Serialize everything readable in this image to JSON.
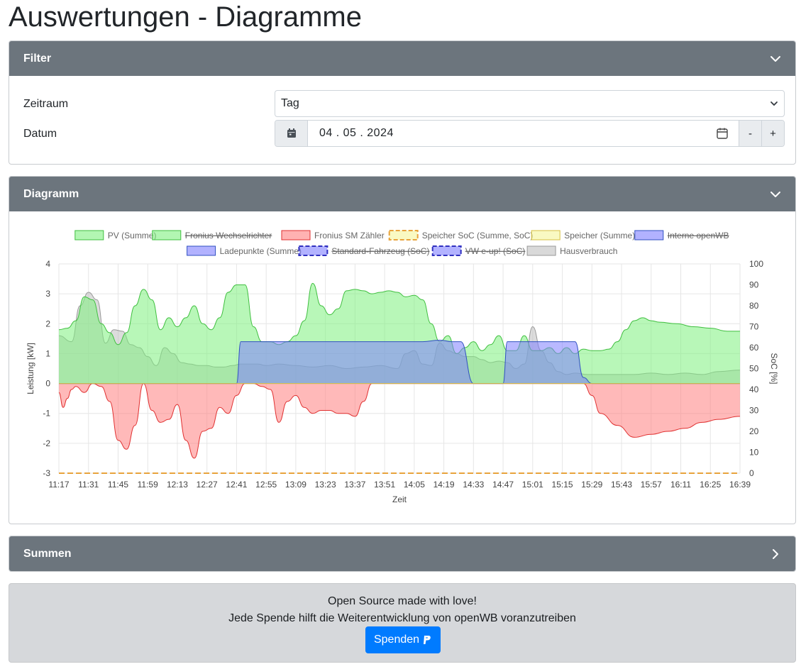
{
  "page_title": "Auswertungen - Diagramme",
  "filter": {
    "header": "Filter",
    "zeitraum_label": "Zeitraum",
    "zeitraum_value": "Tag",
    "datum_label": "Datum",
    "datum_value": "04 . 05 . 2024",
    "minus_label": "-",
    "plus_label": "+"
  },
  "diagram": {
    "header": "Diagramm"
  },
  "summen": {
    "header": "Summen"
  },
  "footer": {
    "line1": "Open Source made with love!",
    "line2": "Jede Spende hilft die Weiterentwicklung von openWB voranzutreiben",
    "donate_label": "Spenden"
  },
  "colors": {
    "header_bg": "#6c757d",
    "pv": "#7ef07e",
    "fronius_zaehler": "#ff7f7f",
    "speicher": "#f5f59a",
    "ladepunkte": "#7f7fff",
    "hausverbrauch": "#bfbfbf",
    "donate": "#007bff"
  },
  "chart_data": {
    "type": "area",
    "xlabel": "Zeit",
    "ylabel": "Leistung [kW]",
    "y2label": "SoC [%]",
    "ylim": [
      -3,
      4
    ],
    "y2lim": [
      0,
      100
    ],
    "yticks": [
      "4",
      "3",
      "2",
      "1",
      "0",
      "-1",
      "-2",
      "-3"
    ],
    "y2ticks": [
      "100",
      "90",
      "80",
      "70",
      "60",
      "50",
      "40",
      "30",
      "20",
      "10",
      "0"
    ],
    "x_labels": [
      "11:17",
      "11:31",
      "11:45",
      "11:59",
      "12:13",
      "12:27",
      "12:41",
      "12:55",
      "13:09",
      "13:23",
      "13:37",
      "13:51",
      "14:05",
      "14:19",
      "14:33",
      "14:47",
      "15:01",
      "15:15",
      "15:29",
      "15:43",
      "15:57",
      "16:11",
      "16:25",
      "16:39"
    ],
    "grid": true,
    "legend": [
      {
        "label": "PV (Summe)",
        "color": "pv",
        "hidden": false,
        "dashed": false
      },
      {
        "label": "Fronius Wechselrichter",
        "color": "pv",
        "hidden": true,
        "dashed": false
      },
      {
        "label": "Fronius SM Zähler",
        "color": "fronius_zaehler",
        "hidden": false,
        "dashed": false
      },
      {
        "label": "Speicher SoC (Summe, SoC)",
        "color": "speicher",
        "hidden": false,
        "dashed": true,
        "stroke": "#e8a33c"
      },
      {
        "label": "Speicher (Summe)",
        "color": "speicher",
        "hidden": false,
        "dashed": false
      },
      {
        "label": "Interne openWB",
        "color": "ladepunkte",
        "hidden": true,
        "dashed": false
      },
      {
        "label": "Ladepunkte (Summe)",
        "color": "ladepunkte",
        "hidden": false,
        "dashed": false
      },
      {
        "label": "Standard-Fahrzeug (SoC)",
        "color": "ladepunkte",
        "hidden": true,
        "dashed": true,
        "stroke": "#3030c0"
      },
      {
        "label": "VW e-up! (SoC)",
        "color": "ladepunkte",
        "hidden": true,
        "dashed": true,
        "stroke": "#3030c0"
      },
      {
        "label": "Hausverbrauch",
        "color": "hausverbrauch",
        "hidden": false,
        "dashed": false
      }
    ],
    "series": [
      {
        "name": "PV (Summe)",
        "x_minutes": [
          0,
          4,
          8,
          12,
          16,
          20,
          24,
          28,
          32,
          36,
          40,
          44,
          48,
          52,
          56,
          60,
          64,
          68,
          72,
          76,
          80,
          84,
          88,
          92,
          96,
          100,
          104,
          108,
          112,
          116,
          120,
          124,
          128,
          132,
          136,
          140,
          144,
          148,
          152,
          156,
          160,
          164,
          168,
          172,
          176,
          180,
          184,
          188,
          192,
          196,
          200,
          204,
          208,
          212,
          216,
          220,
          224,
          228,
          232,
          236,
          240,
          244,
          248,
          252,
          256,
          260,
          264,
          268,
          272,
          276,
          280,
          284,
          292,
          300,
          308,
          316,
          322
        ],
        "values": [
          1.8,
          1.85,
          2.1,
          2.9,
          2.8,
          2.0,
          1.7,
          1.3,
          1.7,
          2.6,
          3.15,
          2.8,
          1.8,
          2.2,
          1.9,
          2.2,
          2.6,
          2.0,
          1.8,
          2.2,
          3.05,
          3.3,
          3.3,
          1.9,
          1.4,
          1.4,
          1.3,
          1.4,
          1.6,
          2.1,
          3.35,
          2.6,
          2.3,
          2.5,
          3.1,
          3.15,
          3.1,
          3.0,
          3.05,
          3.1,
          3.05,
          2.9,
          2.95,
          2.8,
          2.0,
          1.4,
          1.6,
          1.0,
          1.2,
          1.4,
          1.1,
          1.3,
          1.6,
          1.1,
          1.1,
          1.6,
          1.1,
          1.1,
          1.2,
          1.0,
          1.2,
          1.0,
          1.15,
          1.1,
          1.1,
          1.15,
          1.4,
          1.8,
          2.1,
          2.2,
          2.1,
          2.05,
          2.0,
          1.9,
          1.85,
          1.75,
          1.75
        ]
      },
      {
        "name": "Fronius SM Zähler",
        "x_minutes": [
          0,
          2,
          4,
          6,
          8,
          12,
          16,
          20,
          24,
          28,
          32,
          36,
          40,
          44,
          48,
          52,
          56,
          60,
          64,
          68,
          72,
          76,
          80,
          84,
          88,
          92,
          96,
          100,
          104,
          108,
          112,
          116,
          120,
          124,
          128,
          132,
          136,
          140,
          144,
          148,
          152,
          156,
          160,
          164,
          168,
          172,
          176,
          180,
          184,
          188,
          192,
          196,
          200,
          204,
          208,
          212,
          216,
          220,
          224,
          228,
          232,
          236,
          240,
          244,
          248,
          252,
          256,
          264,
          272,
          280,
          288,
          296,
          304,
          312,
          322
        ],
        "values": [
          -0.3,
          -0.8,
          -0.5,
          -0.2,
          -0.1,
          -0.3,
          0.0,
          -0.1,
          -0.6,
          -1.9,
          -2.2,
          -1.4,
          0.0,
          -0.9,
          -1.3,
          -1.2,
          -0.7,
          -1.9,
          -2.5,
          -1.6,
          -1.5,
          -0.8,
          -1.0,
          -0.4,
          0.0,
          0.0,
          -0.1,
          -0.2,
          -1.3,
          -0.6,
          -0.4,
          -0.8,
          -1.0,
          -0.9,
          -0.9,
          -1.0,
          -1.0,
          -1.1,
          -0.6,
          0.0,
          0.0,
          0.0,
          0.0,
          0.0,
          0.0,
          0.0,
          0.0,
          0.0,
          0.0,
          0.0,
          0.0,
          0.0,
          0.0,
          0.0,
          0.0,
          0.0,
          0.0,
          0.0,
          0.0,
          0.0,
          0.0,
          0.0,
          0.0,
          0.0,
          0.0,
          -0.4,
          -1.0,
          -1.4,
          -1.8,
          -1.7,
          -1.6,
          -1.5,
          -1.3,
          -1.2,
          -1.1
        ]
      },
      {
        "name": "Speicher (Summe)",
        "x_minutes": [
          0,
          40,
          52,
          60,
          72,
          88,
          100,
          112,
          128,
          140,
          150,
          160,
          172,
          184,
          196,
          208,
          220,
          232,
          244,
          256,
          322
        ],
        "values": [
          0,
          0,
          0,
          0,
          0,
          0,
          0,
          0,
          0,
          0,
          0,
          0,
          0,
          0,
          0,
          0,
          0,
          0,
          0,
          0,
          0
        ]
      },
      {
        "name": "Ladepunkte (Summe)",
        "x_minutes": [
          0,
          80,
          84,
          86,
          160,
          168,
          172,
          180,
          186,
          190,
          196,
          210,
          212,
          240,
          244,
          248,
          252,
          256,
          322
        ],
        "values": [
          0,
          0,
          0,
          1.4,
          1.4,
          1.4,
          1.4,
          1.45,
          1.4,
          1.4,
          0,
          0,
          1.4,
          1.4,
          1.4,
          0.2,
          0,
          0,
          0
        ]
      },
      {
        "name": "Hausverbrauch",
        "x_minutes": [
          0,
          6,
          10,
          14,
          18,
          22,
          26,
          30,
          34,
          38,
          42,
          46,
          50,
          54,
          58,
          62,
          66,
          70,
          74,
          78,
          82,
          86,
          90,
          94,
          98,
          104,
          112,
          120,
          128,
          136,
          144,
          152,
          160,
          164,
          168,
          172,
          176,
          180,
          184,
          188,
          192,
          196,
          200,
          204,
          208,
          212,
          216,
          220,
          224,
          228,
          232,
          236,
          240,
          244,
          250,
          256,
          264,
          272,
          280,
          288,
          296,
          304,
          312,
          322
        ],
        "values": [
          1.6,
          1.4,
          2.6,
          3.05,
          2.8,
          1.35,
          1.8,
          1.75,
          1.3,
          1.2,
          0.9,
          0.6,
          1.2,
          1.0,
          0.7,
          0.65,
          0.6,
          0.6,
          0.55,
          0.55,
          0.6,
          0.65,
          0.65,
          0.65,
          0.6,
          0.65,
          0.6,
          0.55,
          0.6,
          0.5,
          0.55,
          0.6,
          0.5,
          1.0,
          1.1,
          0.65,
          0.6,
          1.35,
          1.1,
          1.0,
          0.9,
          0.9,
          0.8,
          0.7,
          0.75,
          0.7,
          0.5,
          0.65,
          1.9,
          1.1,
          0.7,
          0.4,
          0.3,
          0.35,
          0.3,
          0.3,
          0.3,
          0.3,
          0.35,
          0.3,
          0.35,
          0.3,
          0.4,
          0.45
        ]
      },
      {
        "name": "Speicher SoC (Summe, SoC)",
        "x_minutes": [
          0,
          322
        ],
        "values": [
          0,
          0
        ],
        "axis": "y2"
      }
    ]
  }
}
